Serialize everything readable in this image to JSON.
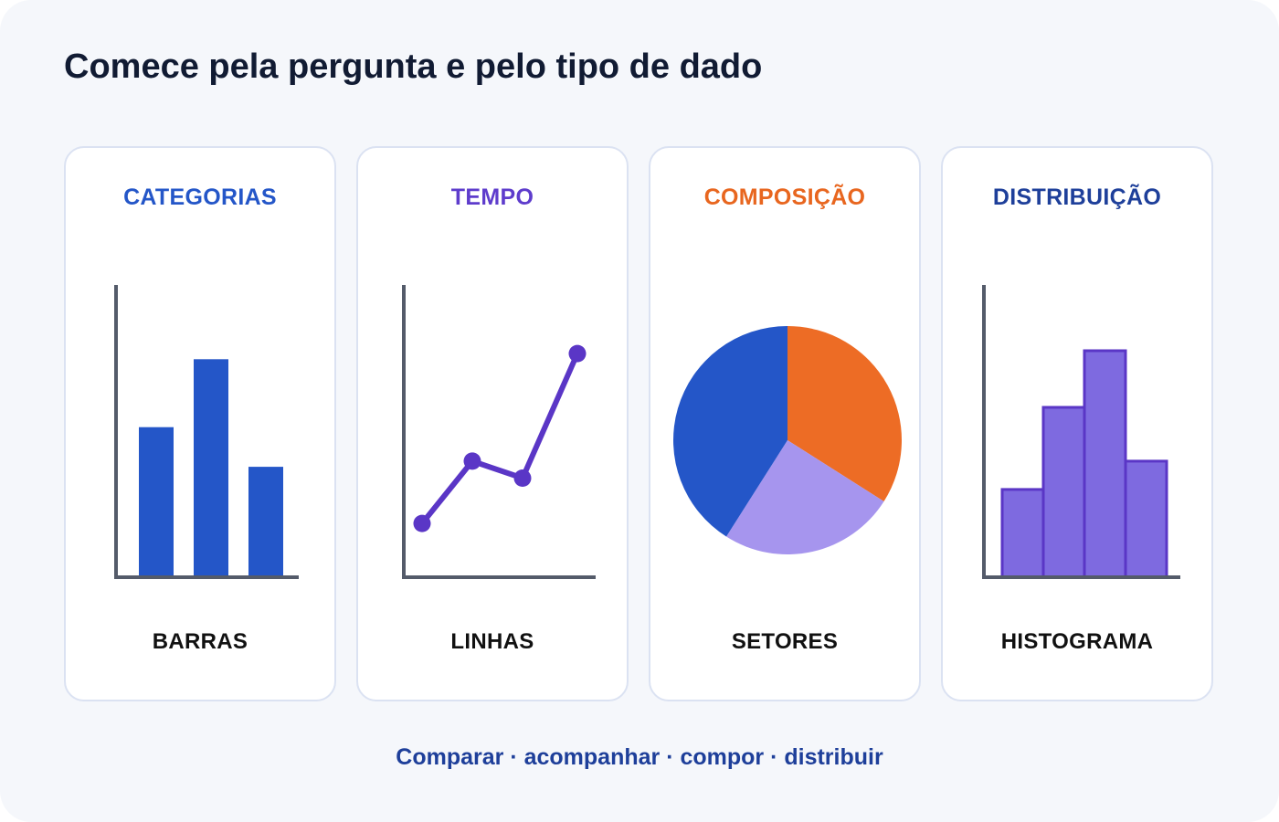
{
  "title": "Comece pela pergunta e pelo tipo de dado",
  "cards": [
    {
      "heading": "CATEGORIAS",
      "label": "BARRAS",
      "color": "#2456c8"
    },
    {
      "heading": "TEMPO",
      "label": "LINHAS",
      "color": "#5e3ccc"
    },
    {
      "heading": "COMPOSIÇÃO",
      "label": "SETORES",
      "color": "#e8661f"
    },
    {
      "heading": "DISTRIBUIÇÃO",
      "label": "HISTOGRAMA",
      "color": "#1e3f9a"
    }
  ],
  "footer": {
    "text": "Comparar · acompanhar · compor · distribuir",
    "color": "#1e3f9a"
  },
  "colors": {
    "axis": "#545b6a",
    "bars": "#2456c8",
    "line": "#5a36c6",
    "pie": [
      "#ed6c25",
      "#a695ee",
      "#2456c8"
    ],
    "hist_fill": "#7e6ae0",
    "hist_stroke": "#5a36c6"
  },
  "icons": {
    "bars": {
      "icon": "bar-chart-icon",
      "values": [
        0.53,
        0.77,
        0.39
      ]
    },
    "line": {
      "icon": "line-chart-icon",
      "values": [
        0.19,
        0.41,
        0.35,
        0.79
      ]
    },
    "pie": {
      "icon": "pie-chart-icon",
      "shares": [
        0.34,
        0.25,
        0.41
      ]
    },
    "hist": {
      "icon": "histogram-icon",
      "values": [
        0.31,
        0.6,
        0.8,
        0.41
      ]
    }
  }
}
